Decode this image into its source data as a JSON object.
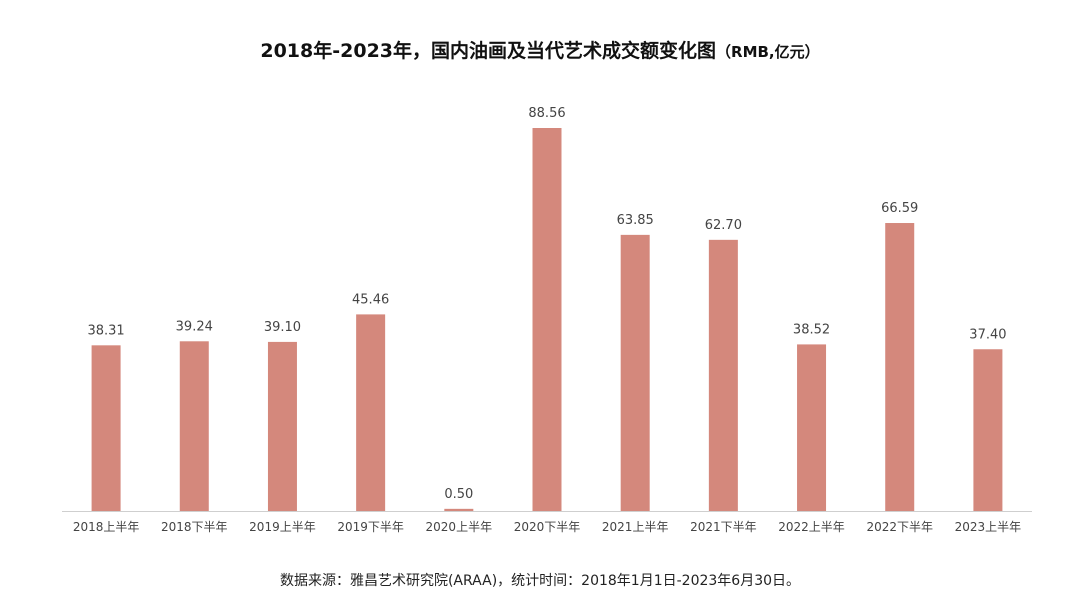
{
  "title": {
    "main": "2018年-2023年，国内油画及当代艺术成交额变化图",
    "unit": "（RMB,亿元）"
  },
  "source": "数据来源：雅昌艺术研究院(ARAA)，统计时间：2018年1月1日-2023年6月30日。",
  "colors": {
    "bar": "#d4887c",
    "axis": "#cfcfcf",
    "label": "#444444"
  },
  "chart_data": {
    "type": "bar",
    "title": "2018年-2023年，国内油画及当代艺术成交额变化图（RMB,亿元）",
    "xlabel": "",
    "ylabel": "",
    "grid": false,
    "legend": "none",
    "categories": [
      "2018上半年",
      "2018下半年",
      "2019上半年",
      "2019下半年",
      "2020上半年",
      "2020下半年",
      "2021上半年",
      "2021下半年",
      "2022上半年",
      "2022下半年",
      "2023上半年"
    ],
    "values": [
      38.31,
      39.24,
      39.1,
      45.46,
      0.5,
      88.56,
      63.85,
      62.7,
      38.52,
      66.59,
      37.4
    ],
    "value_labels": [
      "38.31",
      "39.24",
      "39.10",
      "45.46",
      "0.50",
      "88.56",
      "63.85",
      "62.70",
      "38.52",
      "66.59",
      "37.40"
    ],
    "ylim": [
      0,
      88.56
    ]
  }
}
